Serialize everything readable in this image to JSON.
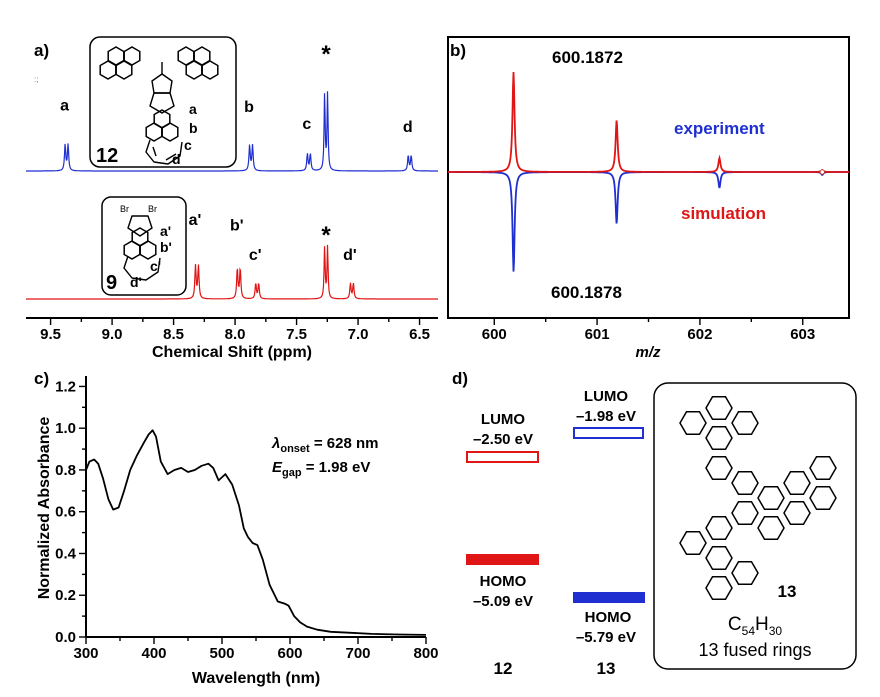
{
  "colors": {
    "blue": "#1f2fd0",
    "red": "#e01515",
    "black": "#000000"
  },
  "chart_data": [
    {
      "panel": "a",
      "type": "line",
      "title": "",
      "xlabel": "Chemical Shift (ppm)",
      "ylabel": "",
      "xlim": [
        9.7,
        6.35
      ],
      "x_reversed": true,
      "ticks": [
        "9.5",
        "9.0",
        "8.5",
        "8.0",
        "7.5",
        "7.0",
        "6.5"
      ],
      "grid": false,
      "series": [
        {
          "name": "12",
          "color": "#1f2fd0",
          "peaks": [
            {
              "x": 9.37,
              "h": 0.34,
              "label": "a"
            },
            {
              "x": 7.87,
              "h": 0.33,
              "label": "b"
            },
            {
              "x": 7.4,
              "h": 0.22,
              "label": "c"
            },
            {
              "x": 7.26,
              "h": 1.0,
              "label": "*"
            },
            {
              "x": 6.58,
              "h": 0.2,
              "label": "d"
            }
          ]
        },
        {
          "name": "9",
          "color": "#e01515",
          "peaks": [
            {
              "x": 8.31,
              "h": 0.6,
              "label": "a'"
            },
            {
              "x": 7.97,
              "h": 0.55,
              "label": "b'"
            },
            {
              "x": 7.82,
              "h": 0.28,
              "label": "c'"
            },
            {
              "x": 7.26,
              "h": 0.95,
              "label": "*"
            },
            {
              "x": 7.05,
              "h": 0.28,
              "label": "d'"
            }
          ]
        }
      ],
      "structures": [
        {
          "compound": "12",
          "labels": [
            "a",
            "b",
            "c",
            "d"
          ]
        },
        {
          "compound": "9",
          "labels": [
            "a'",
            "b'",
            "c'",
            "d'"
          ],
          "substituents": [
            "Br",
            "Br"
          ]
        }
      ]
    },
    {
      "panel": "b",
      "type": "line",
      "title": "",
      "xlabel": "m/z",
      "ylabel": "",
      "xlim": [
        599.55,
        603.45
      ],
      "ticks": [
        "600",
        "601",
        "602",
        "603"
      ],
      "grid": false,
      "legend": {
        "experiment": "experiment",
        "simulation": "simulation"
      },
      "series": [
        {
          "name": "experiment",
          "color": "#1f2fd0",
          "peaks": [
            {
              "x": 600.1878,
              "h": -1.0
            },
            {
              "x": 601.19,
              "h": -0.52
            },
            {
              "x": 602.19,
              "h": -0.16
            },
            {
              "x": 603.19,
              "h": -0.03
            }
          ]
        },
        {
          "name": "simulation",
          "color": "#e01515",
          "peaks": [
            {
              "x": 600.1872,
              "h": 1.0
            },
            {
              "x": 601.19,
              "h": 0.52
            },
            {
              "x": 602.19,
              "h": 0.14
            },
            {
              "x": 603.19,
              "h": 0.02
            }
          ]
        }
      ],
      "annotations": [
        "600.1872",
        "600.1878"
      ]
    },
    {
      "panel": "c",
      "type": "line",
      "title": "",
      "xlabel": "Wavelength (nm)",
      "ylabel": "Normalized Absorbance",
      "xlim": [
        300,
        800
      ],
      "ylim": [
        0,
        1.25
      ],
      "xticks": [
        "300",
        "400",
        "500",
        "600",
        "700",
        "800"
      ],
      "yticks": [
        "0.0",
        "0.2",
        "0.4",
        "0.6",
        "0.8",
        "1.0",
        "1.2"
      ],
      "grid": false,
      "series": [
        {
          "name": "12",
          "color": "#000000",
          "x": [
            300,
            305,
            312,
            318,
            325,
            333,
            340,
            348,
            356,
            365,
            375,
            385,
            392,
            398,
            403,
            410,
            420,
            430,
            440,
            450,
            460,
            470,
            480,
            487,
            495,
            505,
            515,
            525,
            532,
            538,
            545,
            552,
            560,
            570,
            582,
            592,
            598,
            606,
            615,
            625,
            640,
            660,
            690,
            720,
            760,
            800
          ],
          "y": [
            0.8,
            0.84,
            0.85,
            0.83,
            0.76,
            0.66,
            0.61,
            0.62,
            0.7,
            0.8,
            0.87,
            0.93,
            0.97,
            0.99,
            0.96,
            0.84,
            0.78,
            0.8,
            0.81,
            0.79,
            0.8,
            0.82,
            0.83,
            0.81,
            0.75,
            0.78,
            0.73,
            0.63,
            0.52,
            0.48,
            0.45,
            0.44,
            0.37,
            0.25,
            0.17,
            0.16,
            0.15,
            0.1,
            0.07,
            0.05,
            0.035,
            0.025,
            0.02,
            0.015,
            0.012,
            0.01
          ]
        }
      ],
      "annotations": [
        {
          "symbol": "λ",
          "subscript": "onset",
          "value": " = 628 nm"
        },
        {
          "symbol": "E",
          "subscript": "gap",
          "value": " = 1.98 eV"
        }
      ]
    },
    {
      "panel": "d",
      "type": "diagram",
      "title": "",
      "unit": "eV",
      "compounds": [
        {
          "name": "12",
          "color": "#e01515",
          "lumo": {
            "label": "LUMO",
            "value": "–2.50 eV",
            "energy": -2.5
          },
          "homo": {
            "label": "HOMO",
            "value": "–5.09 eV",
            "energy": -5.09
          }
        },
        {
          "name": "13",
          "color": "#1f2fd0",
          "lumo": {
            "label": "LUMO",
            "value": "–1.98 eV",
            "energy": -1.98
          },
          "homo": {
            "label": "HOMO",
            "value": "–5.79 eV",
            "energy": -5.79
          }
        }
      ],
      "structure": {
        "compound": "13",
        "formula_parts": [
          "C",
          "54",
          "H",
          "30"
        ],
        "caption": "13 fused rings"
      }
    }
  ],
  "panel_labels": {
    "a": "a)",
    "b": "b)",
    "c": "c)",
    "d": "d)"
  },
  "speck": ":;"
}
